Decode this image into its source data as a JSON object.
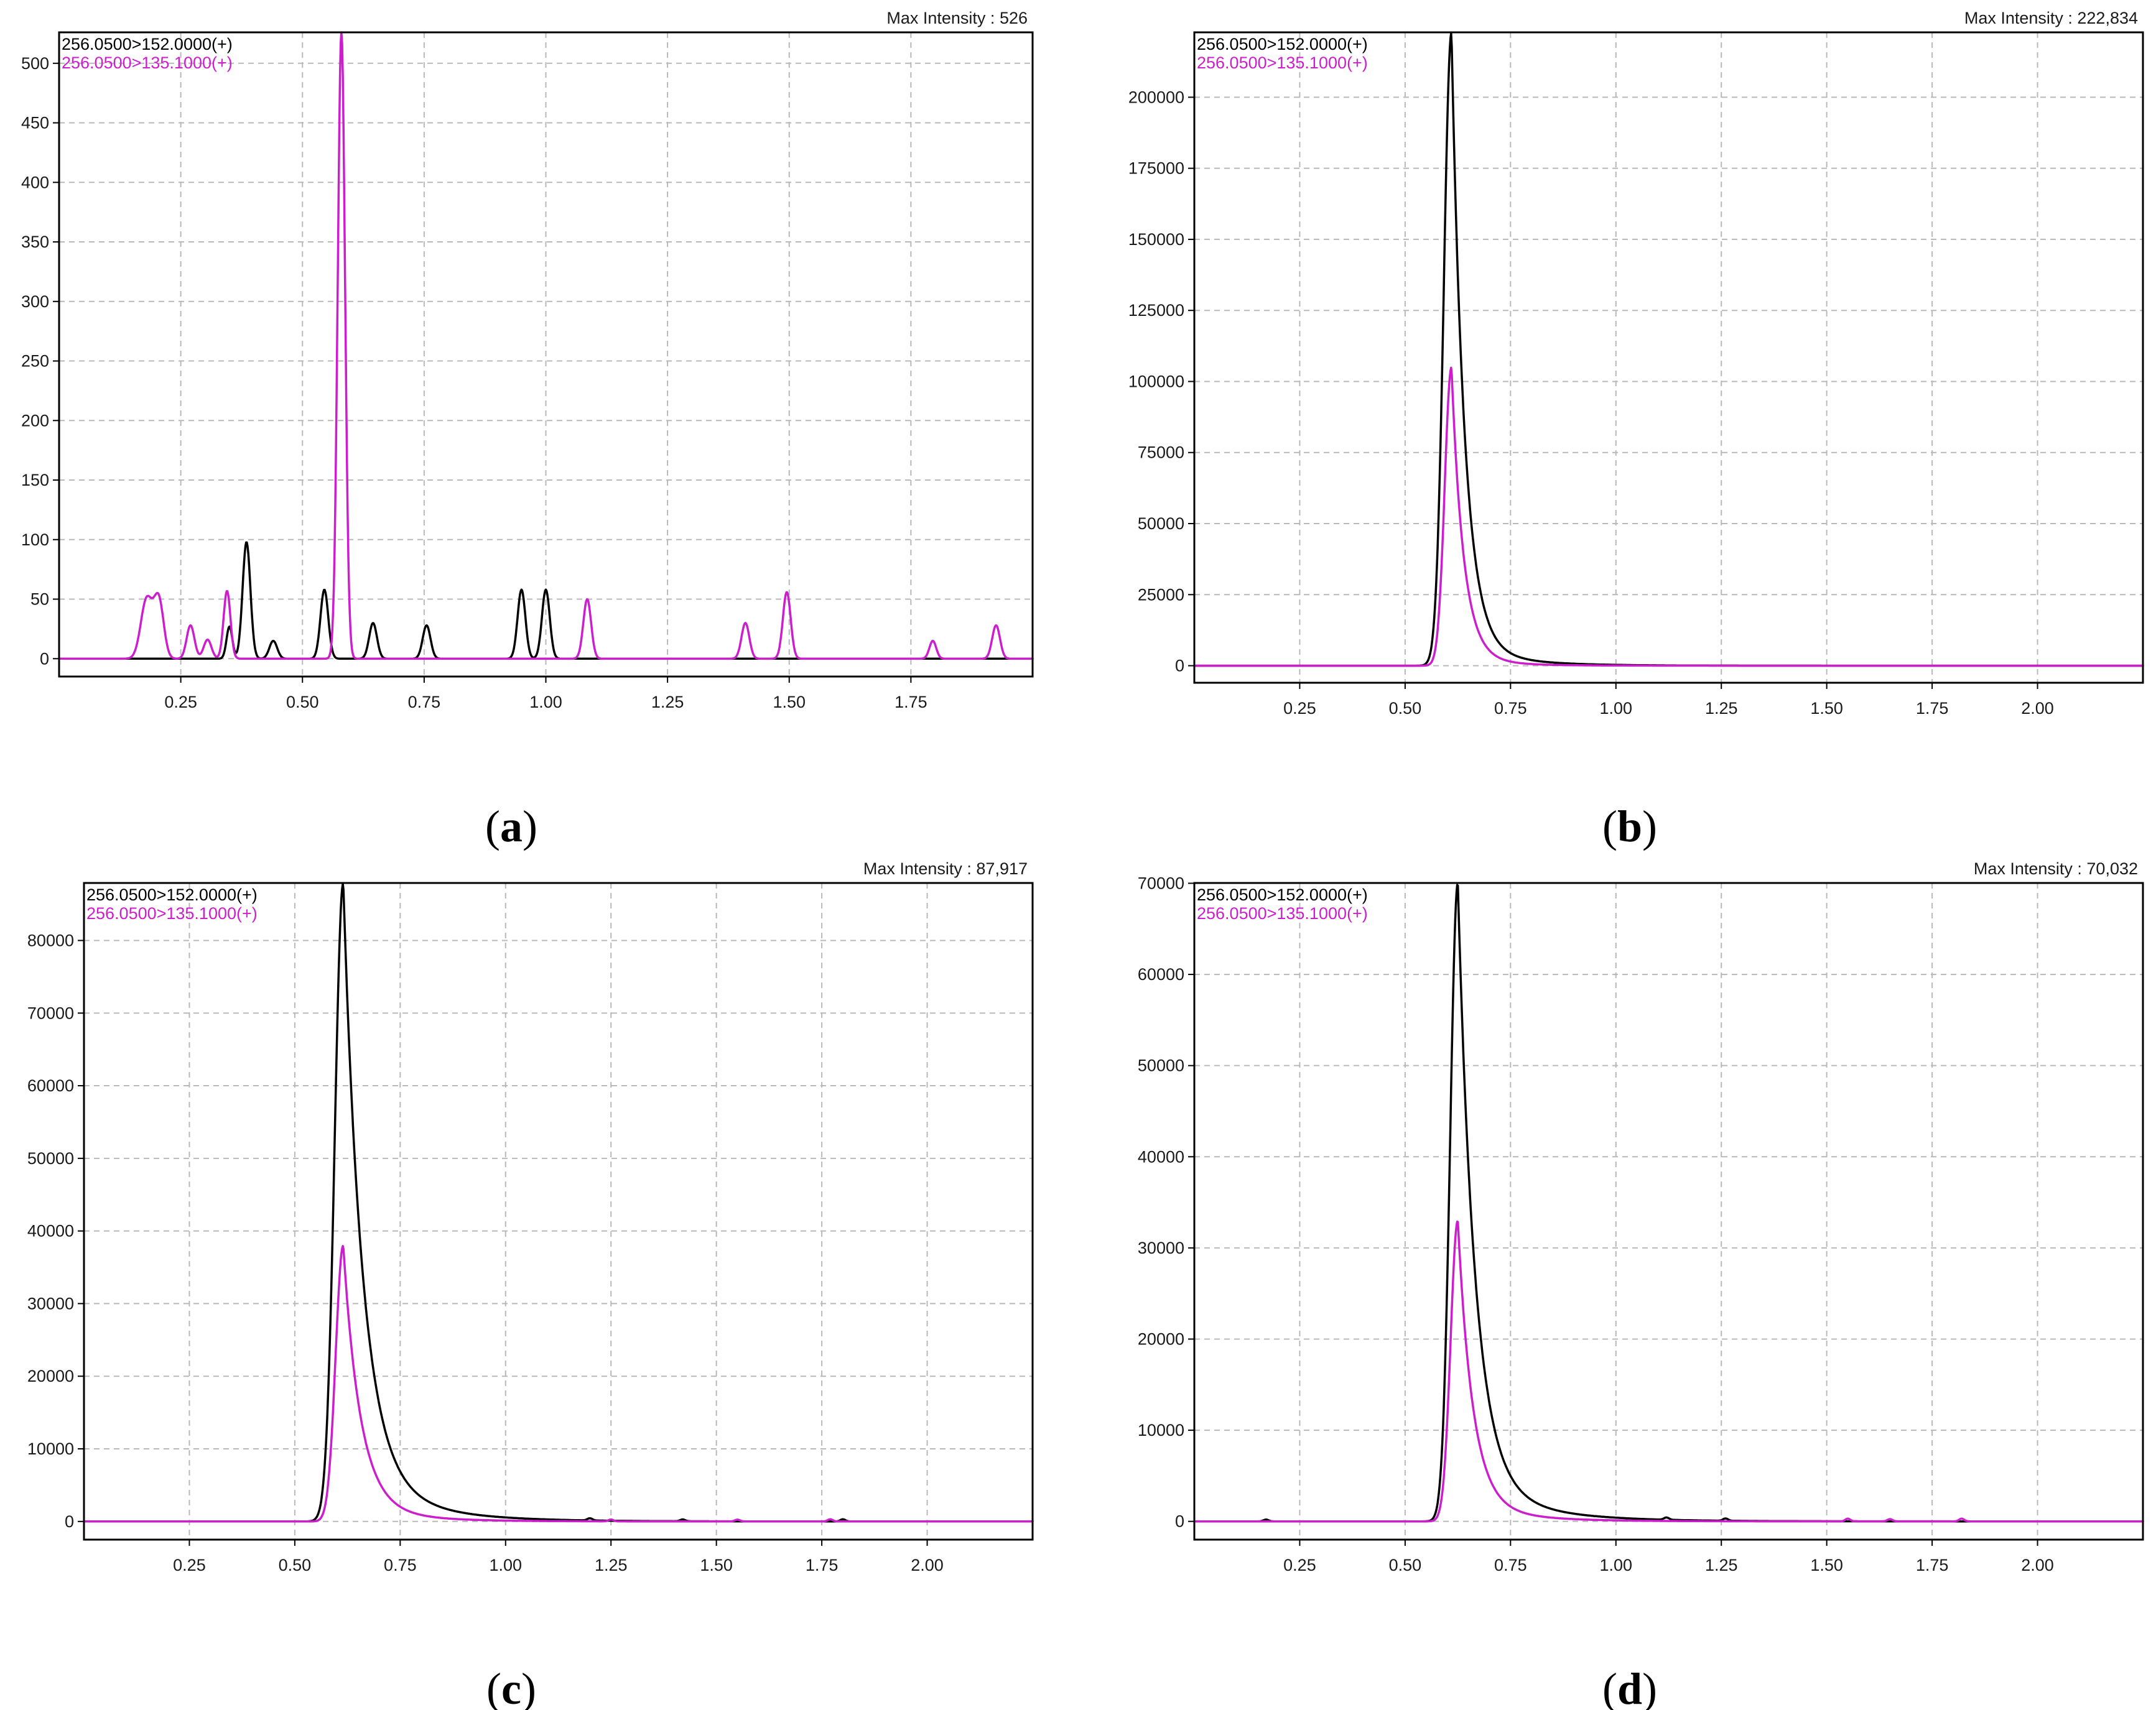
{
  "colors": {
    "transition_152": "#000000",
    "transition_135": "#cc1ecc",
    "grid": "#b8b8b8"
  },
  "chart_data": [
    {
      "caption_letter": "a",
      "max_intensity_label": "Max Intensity :",
      "max_intensity_value": "526",
      "type": "line",
      "xlim": [
        0.0,
        2.0
      ],
      "ylim": [
        -15,
        526
      ],
      "xticks": [
        "0.25",
        "0.50",
        "0.75",
        "1.00",
        "1.25",
        "1.50",
        "1.75"
      ],
      "xtick_values": [
        0.25,
        0.5,
        0.75,
        1.0,
        1.25,
        1.5,
        1.75
      ],
      "yticks": [
        "0",
        "50",
        "100",
        "150",
        "200",
        "250",
        "300",
        "350",
        "400",
        "450",
        "500"
      ],
      "ytick_values": [
        0,
        50,
        100,
        150,
        200,
        250,
        300,
        350,
        400,
        450,
        500
      ],
      "grid": true,
      "legend_position": "top-left",
      "series": [
        {
          "name": "256.0500>152.0000(+)",
          "color_key": "transition_152",
          "peaks": [
            [
              0.35,
              27,
              0.006
            ],
            [
              0.385,
              98,
              0.008
            ],
            [
              0.44,
              15,
              0.008
            ],
            [
              0.545,
              58,
              0.008
            ],
            [
              0.645,
              30,
              0.008
            ],
            [
              0.755,
              28,
              0.008
            ],
            [
              0.95,
              58,
              0.008
            ],
            [
              1.0,
              58,
              0.008
            ]
          ]
        },
        {
          "name": "256.0500>135.1000(+)",
          "color_key": "transition_135",
          "peaks": [
            [
              0.18,
              50,
              0.012
            ],
            [
              0.205,
              48,
              0.01
            ],
            [
              0.27,
              28,
              0.008
            ],
            [
              0.305,
              16,
              0.008
            ],
            [
              0.345,
              57,
              0.007
            ],
            [
              0.58,
              526,
              0.0075
            ],
            [
              1.085,
              50,
              0.008
            ],
            [
              1.41,
              30,
              0.008
            ],
            [
              1.495,
              56,
              0.008
            ],
            [
              1.795,
              15,
              0.007
            ],
            [
              1.925,
              28,
              0.008
            ]
          ]
        }
      ]
    },
    {
      "caption_letter": "b",
      "max_intensity_label": "Max Intensity :",
      "max_intensity_value": "222,834",
      "type": "line",
      "xlim": [
        0.0,
        2.25
      ],
      "ylim": [
        -6000,
        222834
      ],
      "xticks": [
        "0.25",
        "0.50",
        "0.75",
        "1.00",
        "1.25",
        "1.50",
        "1.75",
        "2.00"
      ],
      "xtick_values": [
        0.25,
        0.5,
        0.75,
        1.0,
        1.25,
        1.5,
        1.75,
        2.0
      ],
      "yticks": [
        "0",
        "25000",
        "50000",
        "75000",
        "100000",
        "125000",
        "150000",
        "175000",
        "200000"
      ],
      "ytick_values": [
        0,
        25000,
        50000,
        75000,
        100000,
        125000,
        150000,
        175000,
        200000
      ],
      "grid": true,
      "legend_position": "top-left",
      "series": [
        {
          "name": "256.0500>152.0000(+)",
          "color_key": "transition_152",
          "main_peak": {
            "x": 0.61,
            "y": 222834,
            "rise": 0.018,
            "decay": 0.03,
            "tail_amp": 0.035,
            "tail_decay": 0.12
          },
          "noise": []
        },
        {
          "name": "256.0500>135.1000(+)",
          "color_key": "transition_135",
          "main_peak": {
            "x": 0.61,
            "y": 105000,
            "rise": 0.016,
            "decay": 0.028,
            "tail_amp": 0.03,
            "tail_decay": 0.1
          },
          "noise": []
        }
      ]
    },
    {
      "caption_letter": "c",
      "max_intensity_label": "Max Intensity :",
      "max_intensity_value": "87,917",
      "type": "line",
      "xlim": [
        0.0,
        2.25
      ],
      "ylim": [
        -2500,
        87917
      ],
      "xticks": [
        "0.25",
        "0.50",
        "0.75",
        "1.00",
        "1.25",
        "1.50",
        "1.75",
        "2.00"
      ],
      "xtick_values": [
        0.25,
        0.5,
        0.75,
        1.0,
        1.25,
        1.5,
        1.75,
        2.0
      ],
      "yticks": [
        "0",
        "10000",
        "20000",
        "30000",
        "40000",
        "50000",
        "60000",
        "70000",
        "80000"
      ],
      "ytick_values": [
        0,
        10000,
        20000,
        30000,
        40000,
        50000,
        60000,
        70000,
        80000
      ],
      "grid": true,
      "legend_position": "top-left",
      "series": [
        {
          "name": "256.0500>152.0000(+)",
          "color_key": "transition_152",
          "main_peak": {
            "x": 0.615,
            "y": 87917,
            "rise": 0.02,
            "decay": 0.045,
            "tail_amp": 0.08,
            "tail_decay": 0.15
          },
          "noise": [
            [
              1.2,
              300
            ],
            [
              1.42,
              250
            ],
            [
              1.8,
              300
            ]
          ]
        },
        {
          "name": "256.0500>135.1000(+)",
          "color_key": "transition_135",
          "main_peak": {
            "x": 0.615,
            "y": 38000,
            "rise": 0.018,
            "decay": 0.04,
            "tail_amp": 0.06,
            "tail_decay": 0.13
          },
          "noise": [
            [
              1.25,
              250
            ],
            [
              1.55,
              250
            ],
            [
              1.77,
              300
            ]
          ]
        }
      ]
    },
    {
      "caption_letter": "d",
      "max_intensity_label": "Max Intensity :",
      "max_intensity_value": "70,032",
      "type": "line",
      "xlim": [
        0.0,
        2.25
      ],
      "ylim": [
        -2000,
        70032
      ],
      "xticks": [
        "0.25",
        "0.50",
        "0.75",
        "1.00",
        "1.25",
        "1.50",
        "1.75",
        "2.00"
      ],
      "xtick_values": [
        0.25,
        0.5,
        0.75,
        1.0,
        1.25,
        1.5,
        1.75,
        2.0
      ],
      "yticks": [
        "0",
        "10000",
        "20000",
        "30000",
        "40000",
        "50000",
        "60000",
        "70000"
      ],
      "ytick_values": [
        0,
        10000,
        20000,
        30000,
        40000,
        50000,
        60000,
        70000
      ],
      "grid": true,
      "legend_position": "top-left",
      "series": [
        {
          "name": "256.0500>152.0000(+)",
          "color_key": "transition_152",
          "main_peak": {
            "x": 0.625,
            "y": 70032,
            "rise": 0.018,
            "decay": 0.04,
            "tail_amp": 0.07,
            "tail_decay": 0.15
          },
          "noise": [
            [
              0.17,
              200
            ],
            [
              1.12,
              250
            ],
            [
              1.26,
              250
            ]
          ]
        },
        {
          "name": "256.0500>135.1000(+)",
          "color_key": "transition_135",
          "main_peak": {
            "x": 0.625,
            "y": 33000,
            "rise": 0.017,
            "decay": 0.035,
            "tail_amp": 0.06,
            "tail_decay": 0.13
          },
          "noise": [
            [
              1.55,
              300
            ],
            [
              1.65,
              250
            ],
            [
              1.82,
              300
            ]
          ]
        }
      ]
    }
  ]
}
